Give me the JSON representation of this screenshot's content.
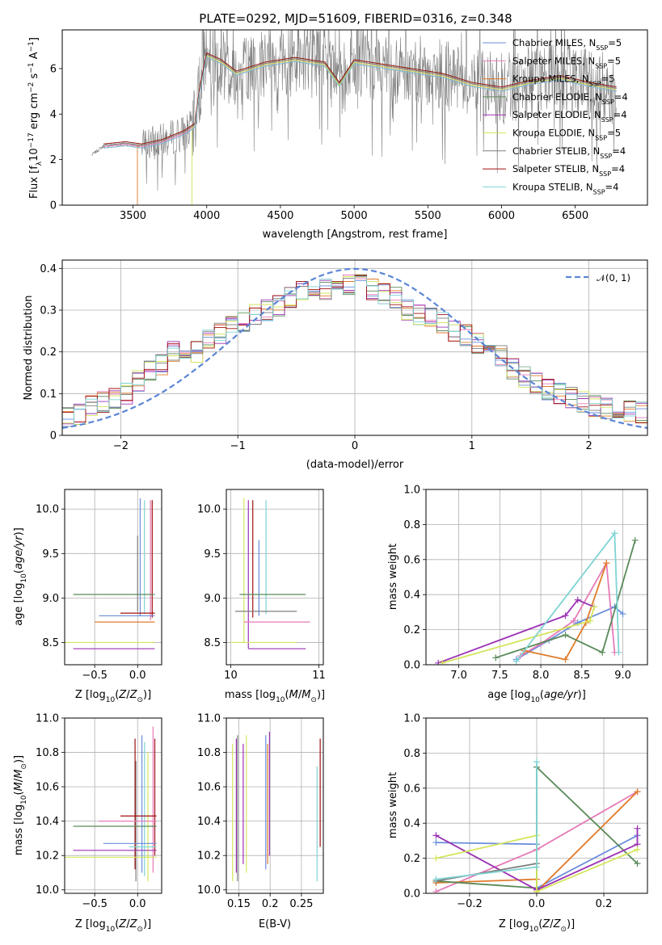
{
  "figure_title": "PLATE=0292, MJD=51609, FIBERID=0316, z=0.348",
  "series_names": [
    "Chabrier MILES, N_SSP=5",
    "Salpeter MILES, N_SSP=5",
    "Kroupa MILES, N_SSP=5",
    "Chabrier ELODIE, N_SSP=4",
    "Salpeter ELODIE, N_SSP=4",
    "Kroupa ELODIE, N_SSP=5",
    "Chabrier STELIB, N_SSP=4",
    "Salpeter STELIB, N_SSP=4",
    "Kroupa STELIB, N_SSP=4"
  ],
  "legend_labels": [
    {
      "main": "Chabrier MILES, N",
      "sub": "SSP",
      "tail": "=5"
    },
    {
      "main": "Salpeter MILES, N",
      "sub": "SSP",
      "tail": "=5"
    },
    {
      "main": "Kroupa MILES, N",
      "sub": "SSP",
      "tail": "=5"
    },
    {
      "main": "Chabrier ELODIE, N",
      "sub": "SSP",
      "tail": "=4"
    },
    {
      "main": "Salpeter ELODIE, N",
      "sub": "SSP",
      "tail": "=4"
    },
    {
      "main": "Kroupa ELODIE, N",
      "sub": "SSP",
      "tail": "=5"
    },
    {
      "main": "Chabrier STELIB, N",
      "sub": "SSP",
      "tail": "=4"
    },
    {
      "main": "Salpeter STELIB, N",
      "sub": "SSP",
      "tail": "=4"
    },
    {
      "main": "Kroupa STELIB, N",
      "sub": "SSP",
      "tail": "=4"
    }
  ],
  "colors": [
    "#6a8edb",
    "#e67ab8",
    "#e07b2b",
    "#5a8a5a",
    "#9b32b4",
    "#d4e55a",
    "#7f7f7f",
    "#a01010",
    "#7fd3d3"
  ],
  "normal_legend": "𝒩(0, 1)",
  "normal_color": "#5b86d6",
  "chart_data": [
    {
      "id": "spectrum",
      "type": "line",
      "xlabel": "wavelength [Angstrom, rest frame]",
      "ylabel": "Flux [f",
      "ylabel_full": "Flux [f_λ 10^-17 erg cm^-2 s^-1 A^-1]",
      "xlim": [
        3020,
        6990
      ],
      "ylim": [
        0,
        7.7
      ],
      "xticks": [
        3500,
        4000,
        4500,
        5000,
        5500,
        6000,
        6500
      ],
      "yticks": [
        0,
        2,
        4,
        6
      ],
      "model_continuum": {
        "x": [
          3220,
          3300,
          3450,
          3560,
          3700,
          3850,
          3920,
          3950,
          4000,
          4100,
          4200,
          4400,
          4600,
          4800,
          4900,
          5000,
          5200,
          5400,
          5600,
          5800,
          6000,
          6200,
          6400,
          6600,
          6780
        ],
        "y": [
          2.2,
          2.6,
          2.7,
          2.6,
          2.8,
          3.2,
          3.5,
          5.0,
          6.6,
          6.3,
          5.8,
          6.2,
          6.4,
          6.2,
          5.3,
          6.3,
          6.1,
          5.9,
          5.7,
          5.3,
          5.1,
          5.4,
          5.6,
          5.3,
          5.1
        ]
      },
      "data_noise_start": 3560
    },
    {
      "id": "residuals",
      "type": "histogram",
      "xlabel": "(data-model)/error",
      "ylabel": "Normed distribution",
      "xlim": [
        -2.5,
        2.5
      ],
      "ylim": [
        0,
        0.42
      ],
      "xticks": [
        -2,
        -1,
        0,
        1,
        2
      ],
      "yticks": [
        0,
        0.1,
        0.2,
        0.3,
        0.4
      ],
      "bin_width": 0.1,
      "values": [
        0.045,
        0.05,
        0.07,
        0.08,
        0.09,
        0.1,
        0.13,
        0.155,
        0.17,
        0.2,
        0.21,
        0.2,
        0.23,
        0.245,
        0.26,
        0.27,
        0.29,
        0.3,
        0.31,
        0.33,
        0.35,
        0.36,
        0.35,
        0.36,
        0.36,
        0.36,
        0.35,
        0.34,
        0.33,
        0.3,
        0.29,
        0.28,
        0.27,
        0.25,
        0.24,
        0.22,
        0.2,
        0.19,
        0.16,
        0.14,
        0.125,
        0.11,
        0.1,
        0.09,
        0.08,
        0.07,
        0.065,
        0.06,
        0.058,
        0.055
      ]
    },
    {
      "id": "age-vs-Z",
      "type": "scatter",
      "xlabel": "Z [log",
      "ylabel": "age  [log",
      "xlim": [
        -0.85,
        0.28
      ],
      "ylim": [
        8.25,
        10.22
      ],
      "xticks": [
        -0.5,
        0.0
      ],
      "yticks": [
        8.5,
        9.0,
        9.5,
        10.0
      ],
      "segments": [
        {
          "series": 6,
          "x": 0,
          "y": [
            8.85,
            9.7
          ]
        },
        {
          "series": 0,
          "x": 0.03,
          "y": [
            8.8,
            10.12
          ]
        },
        {
          "series": 8,
          "x": 0.08,
          "y": [
            8.82,
            10.1
          ]
        },
        {
          "series": 1,
          "x": 0.15,
          "y": [
            8.75,
            10.1
          ]
        },
        {
          "series": 7,
          "x": 0.17,
          "y": [
            8.78,
            10.1
          ]
        }
      ],
      "hsegments": [
        {
          "series": 3,
          "y": 9.04,
          "x": [
            -0.75,
            0.2
          ]
        },
        {
          "series": 0,
          "y": 8.8,
          "x": [
            -0.45,
            0.2
          ]
        },
        {
          "series": 2,
          "y": 8.73,
          "x": [
            -0.5,
            0.2
          ]
        },
        {
          "series": 5,
          "y": 8.5,
          "x": [
            -0.85,
            0.2
          ]
        },
        {
          "series": 4,
          "y": 8.43,
          "x": [
            -0.75,
            0.2
          ]
        },
        {
          "series": 7,
          "y": 8.83,
          "x": [
            -0.2,
            0.2
          ]
        }
      ]
    },
    {
      "id": "age-vs-mass",
      "type": "scatter",
      "xlabel": "mass [log",
      "ylabel": "",
      "xlim": [
        9.95,
        11.05
      ],
      "ylim": [
        8.25,
        10.22
      ],
      "xticks": [
        10,
        11
      ],
      "yticks": [
        8.5,
        9.0,
        9.5,
        10.0
      ],
      "segments": [
        {
          "series": 5,
          "x": 10.15,
          "y": [
            8.5,
            10.12
          ]
        },
        {
          "series": 4,
          "x": 10.2,
          "y": [
            8.43,
            10.1
          ]
        },
        {
          "series": 7,
          "x": 10.25,
          "y": [
            8.78,
            10.1
          ]
        },
        {
          "series": 0,
          "x": 10.32,
          "y": [
            8.8,
            9.65
          ]
        },
        {
          "series": 8,
          "x": 10.4,
          "y": [
            8.82,
            10.1
          ]
        }
      ],
      "hsegments": [
        {
          "series": 3,
          "y": 9.04,
          "x": [
            10.1,
            10.85
          ]
        },
        {
          "series": 6,
          "y": 8.85,
          "x": [
            10.05,
            10.75
          ]
        },
        {
          "series": 1,
          "y": 8.73,
          "x": [
            10.15,
            10.9
          ]
        },
        {
          "series": 5,
          "y": 8.5,
          "x": [
            10.0,
            10.75
          ]
        },
        {
          "series": 4,
          "y": 8.43,
          "x": [
            10.2,
            10.85
          ]
        }
      ]
    },
    {
      "id": "weight-vs-age",
      "type": "line",
      "xlabel": "age  [log",
      "ylabel": "mass weight",
      "xlim": [
        6.6,
        9.3
      ],
      "ylim": [
        0,
        1.0
      ],
      "xticks": [
        7.0,
        7.5,
        8.0,
        8.5,
        9.0
      ],
      "yticks": [
        0.0,
        0.2,
        0.4,
        0.6,
        0.8,
        1.0
      ],
      "series": [
        {
          "index": 0,
          "x": [
            7.7,
            8.1,
            8.45,
            8.9,
            9.0
          ],
          "y": [
            0.03,
            0.14,
            0.24,
            0.33,
            0.29
          ]
        },
        {
          "index": 1,
          "x": [
            7.75,
            8.0,
            8.4,
            8.8,
            8.9
          ],
          "y": [
            0.05,
            0.12,
            0.25,
            0.58,
            0.07
          ]
        },
        {
          "index": 2,
          "x": [
            7.8,
            8.3,
            8.55,
            8.8
          ],
          "y": [
            0.08,
            0.03,
            0.24,
            0.58
          ]
        },
        {
          "index": 3,
          "x": [
            7.45,
            8.3,
            8.75,
            9.15
          ],
          "y": [
            0.04,
            0.17,
            0.07,
            0.71
          ]
        },
        {
          "index": 4,
          "x": [
            6.75,
            8.3,
            8.45,
            8.65
          ],
          "y": [
            0.01,
            0.28,
            0.37,
            0.33
          ]
        },
        {
          "index": 5,
          "x": [
            6.8,
            8.6,
            8.65
          ],
          "y": [
            0.01,
            0.25,
            0.33
          ]
        },
        {
          "index": 8,
          "x": [
            7.7,
            8.9,
            8.95
          ],
          "y": [
            0.02,
            0.75,
            0.07
          ]
        }
      ]
    },
    {
      "id": "mass-vs-Z",
      "type": "scatter",
      "xlabel": "Z [log",
      "ylabel": "mass [log",
      "xlim": [
        -0.85,
        0.28
      ],
      "ylim": [
        9.98,
        11.0
      ],
      "xticks": [
        -0.5,
        0.0
      ],
      "yticks": [
        10.0,
        10.2,
        10.4,
        10.6,
        10.8,
        11.0
      ],
      "segments": [
        {
          "series": 6,
          "x": -0.02,
          "y": [
            10.05,
            10.75
          ]
        },
        {
          "series": 7,
          "x": -0.03,
          "y": [
            10.12,
            10.88
          ]
        },
        {
          "series": 0,
          "x": 0.05,
          "y": [
            10.1,
            10.9
          ]
        },
        {
          "series": 8,
          "x": 0.08,
          "y": [
            10.08,
            10.86
          ]
        },
        {
          "series": 5,
          "x": 0.12,
          "y": [
            10.05,
            10.8
          ]
        },
        {
          "series": 1,
          "x": 0.18,
          "y": [
            10.1,
            10.95
          ]
        },
        {
          "series": 7,
          "x": 0.2,
          "y": [
            10.2,
            10.88
          ]
        }
      ],
      "hsegments": [
        {
          "series": 7,
          "y": 10.43,
          "x": [
            -0.2,
            0.22
          ]
        },
        {
          "series": 1,
          "y": 10.4,
          "x": [
            -0.45,
            0.22
          ]
        },
        {
          "series": 3,
          "y": 10.37,
          "x": [
            -0.75,
            0.22
          ]
        },
        {
          "series": 0,
          "y": 10.27,
          "x": [
            -0.4,
            0.22
          ]
        },
        {
          "series": 8,
          "y": 10.25,
          "x": [
            -0.1,
            0.22
          ]
        },
        {
          "series": 4,
          "y": 10.23,
          "x": [
            -0.75,
            0.22
          ]
        },
        {
          "series": 5,
          "y": 10.19,
          "x": [
            -0.85,
            0.22
          ]
        }
      ]
    },
    {
      "id": "mass-vs-EBV",
      "type": "scatter",
      "xlabel": "E(B-V)",
      "ylabel": "",
      "xlim": [
        0.13,
        0.285
      ],
      "ylim": [
        9.98,
        11.0
      ],
      "xticks": [
        0.15,
        0.2,
        0.25
      ],
      "yticks": [
        10.0,
        10.2,
        10.4,
        10.6,
        10.8,
        11.0
      ],
      "segments": [
        {
          "series": 5,
          "x": 0.14,
          "y": [
            10.05,
            10.85
          ]
        },
        {
          "series": 4,
          "x": 0.146,
          "y": [
            10.1,
            10.88
          ]
        },
        {
          "series": 6,
          "x": 0.148,
          "y": [
            10.05,
            10.9
          ]
        },
        {
          "series": 4,
          "x": 0.157,
          "y": [
            10.15,
            10.85
          ]
        },
        {
          "series": 5,
          "x": 0.162,
          "y": [
            10.1,
            10.9
          ]
        },
        {
          "series": 0,
          "x": 0.193,
          "y": [
            10.12,
            10.9
          ]
        },
        {
          "series": 2,
          "x": 0.196,
          "y": [
            10.15,
            10.85
          ]
        },
        {
          "series": 4,
          "x": 0.199,
          "y": [
            10.2,
            10.92
          ]
        },
        {
          "series": 8,
          "x": 0.275,
          "y": [
            10.05,
            10.72
          ]
        },
        {
          "series": 7,
          "x": 0.28,
          "y": [
            10.25,
            10.88
          ]
        }
      ]
    },
    {
      "id": "weight-vs-Z",
      "type": "line",
      "xlabel": "Z [log",
      "ylabel": "mass weight",
      "xlim": [
        -0.33,
        0.33
      ],
      "ylim": [
        0,
        1.0
      ],
      "xticks": [
        -0.2,
        0.0,
        0.2
      ],
      "yticks": [
        0.0,
        0.2,
        0.4,
        0.6,
        0.8,
        1.0
      ],
      "series": [
        {
          "index": 0,
          "x": [
            -0.3,
            0.0,
            0.0,
            0.3
          ],
          "y": [
            0.29,
            0.28,
            0.03,
            0.33
          ]
        },
        {
          "index": 1,
          "x": [
            -0.3,
            0.0,
            0.3
          ],
          "y": [
            0.01,
            0.25,
            0.58
          ]
        },
        {
          "index": 2,
          "x": [
            -0.3,
            0.0,
            0.0,
            0.3
          ],
          "y": [
            0.06,
            0.08,
            0.01,
            0.58
          ]
        },
        {
          "index": 3,
          "x": [
            -0.3,
            0.0,
            0.0,
            0.3
          ],
          "y": [
            0.07,
            0.03,
            0.72,
            0.17
          ]
        },
        {
          "index": 4,
          "x": [
            -0.3,
            0.0,
            0.3,
            0.3
          ],
          "y": [
            0.33,
            0.02,
            0.28,
            0.37
          ]
        },
        {
          "index": 5,
          "x": [
            -0.3,
            0.0,
            0.0,
            0.3
          ],
          "y": [
            0.2,
            0.33,
            0.01,
            0.25
          ]
        },
        {
          "index": 6,
          "x": [
            -0.3,
            0.0
          ],
          "y": [
            0.07,
            0.17
          ]
        },
        {
          "index": 8,
          "x": [
            -0.3,
            0.0,
            0.0
          ],
          "y": [
            0.08,
            0.15,
            0.75
          ]
        }
      ]
    }
  ]
}
